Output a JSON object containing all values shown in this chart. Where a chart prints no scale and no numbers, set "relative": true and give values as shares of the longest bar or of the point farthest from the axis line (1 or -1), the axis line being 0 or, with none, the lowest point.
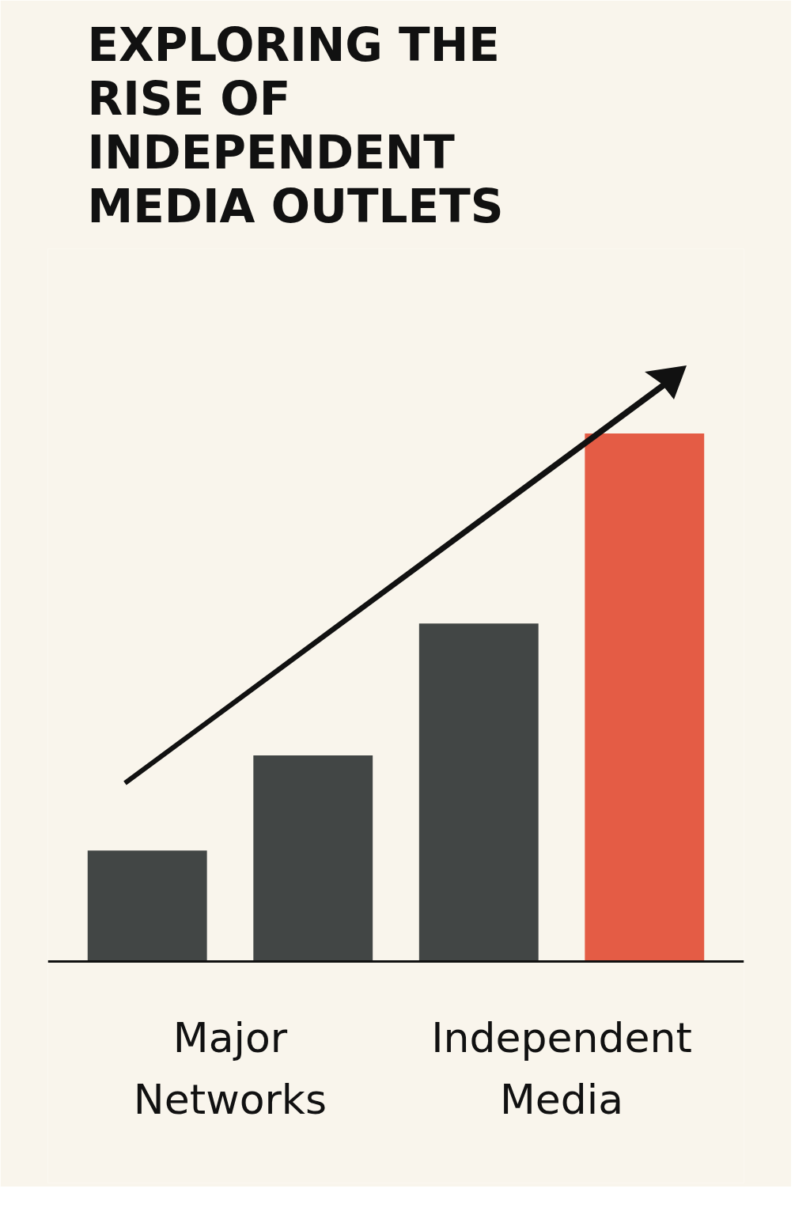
{
  "chart_data": {
    "type": "bar",
    "title": "EXPLORING THE RISE OF INDEPENDENT MEDIA OUTLETS",
    "categories": [
      null,
      null,
      null,
      null
    ],
    "values": [
      0.21,
      0.39,
      0.64,
      1
    ],
    "colors": [
      "#424645",
      "#424645",
      "#424645",
      "#e45c45"
    ],
    "relative": true,
    "annotations": [
      "Major Networks",
      "Independent Media"
    ],
    "grid": false
  }
}
